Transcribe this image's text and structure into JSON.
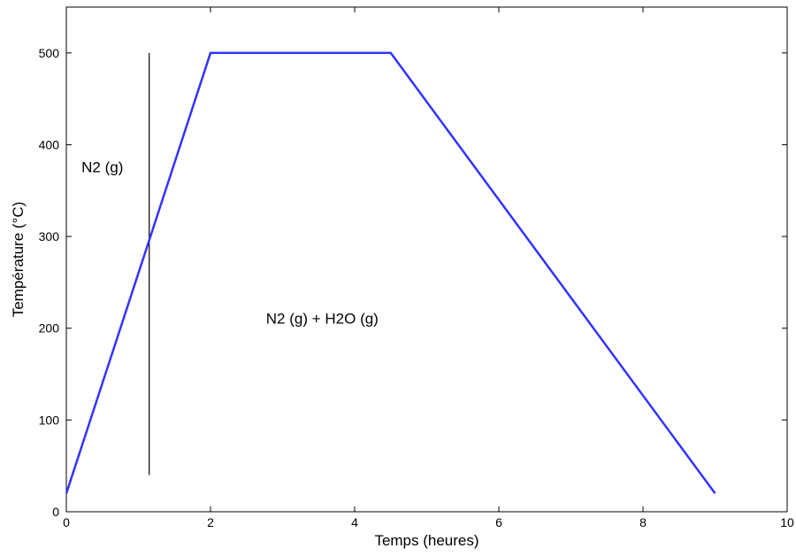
{
  "chart_data": {
    "type": "line",
    "title": "",
    "xlabel": "Temps (heures)",
    "ylabel": "Température (°C)",
    "xlim": [
      0,
      10
    ],
    "ylim": [
      0,
      550
    ],
    "x_ticks": [
      0,
      2,
      4,
      6,
      8,
      10
    ],
    "y_ticks": [
      0,
      100,
      200,
      300,
      400,
      500
    ],
    "x_tick_labels": [
      "0",
      "2",
      "4",
      "6",
      "8",
      "10"
    ],
    "y_tick_labels": [
      "0",
      "100",
      "200",
      "300",
      "400",
      "500"
    ],
    "grid": false,
    "series": [
      {
        "color": "#3333ff",
        "x": [
          0,
          2,
          4.5,
          9
        ],
        "y": [
          20,
          500,
          500,
          20
        ]
      }
    ],
    "divider_line": {
      "x": 1.15,
      "y_range": [
        40,
        500
      ],
      "color": "#000000"
    },
    "annotations": [
      {
        "text": "N2 (g)",
        "x": 0.5,
        "y": 370
      },
      {
        "text": "N2 (g) + H2O (g)",
        "x": 3.55,
        "y": 205
      }
    ]
  }
}
